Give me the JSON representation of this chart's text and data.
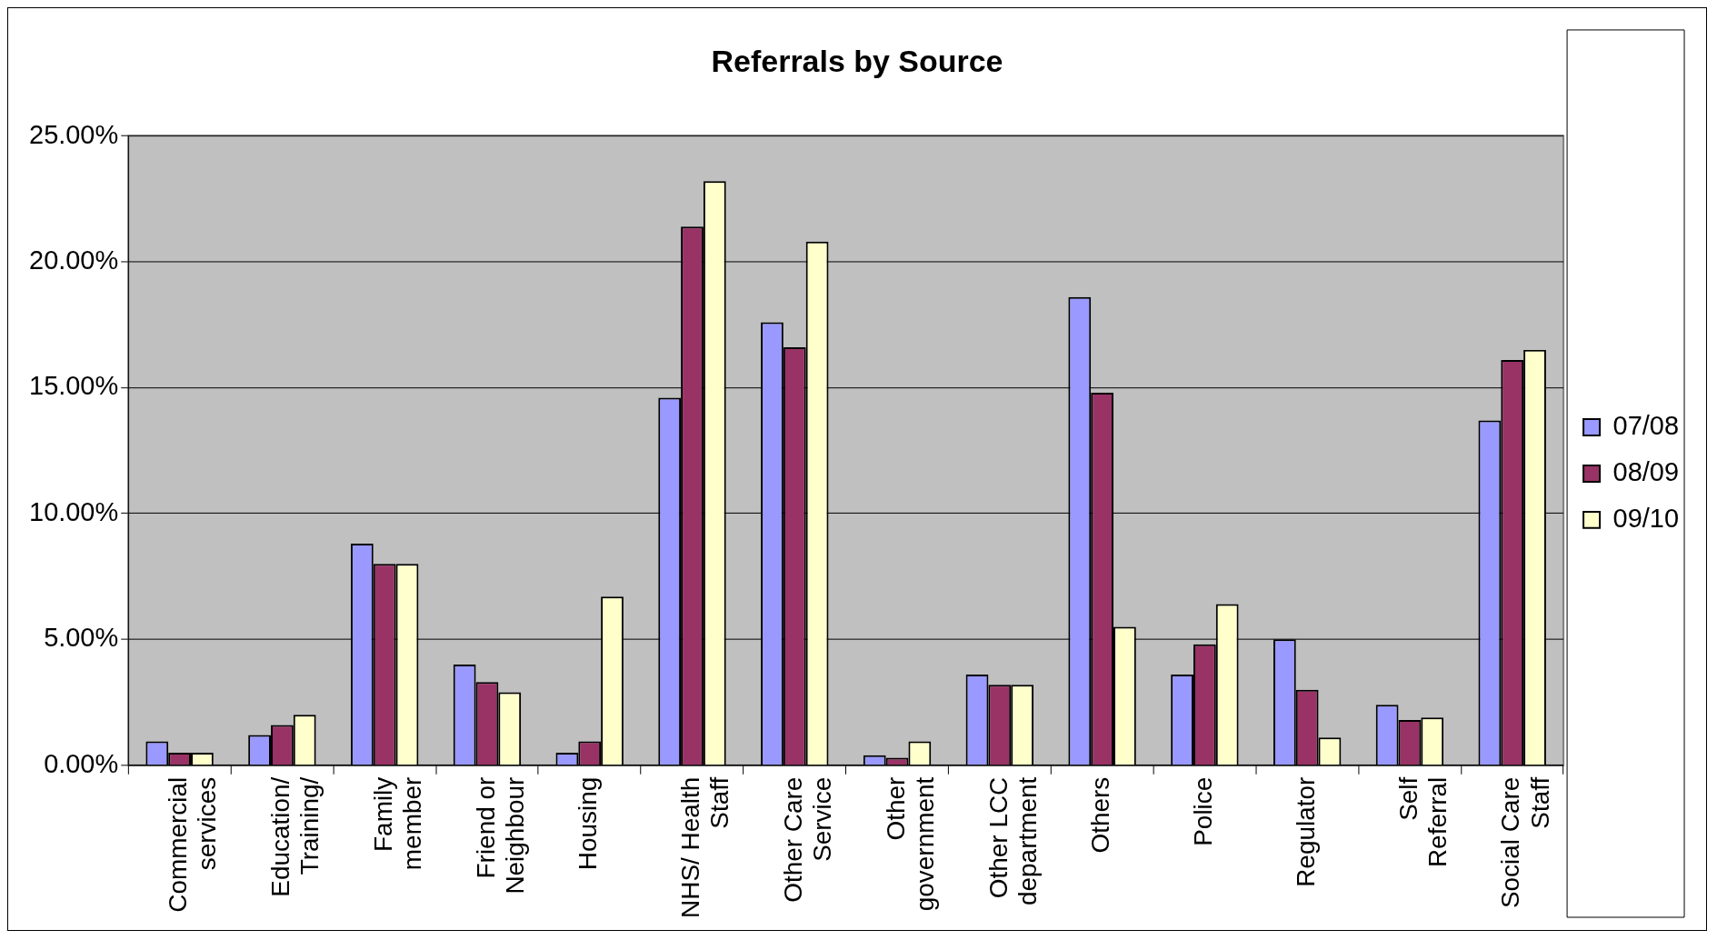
{
  "chart_data": {
    "type": "bar",
    "title": "Referrals by Source",
    "categories": [
      "Commercial services",
      "Education/ Training/",
      "Family member",
      "Friend or Neighbour",
      "Housing",
      "NHS/ Health Staff",
      "Other Care Service",
      "Other government",
      "Other LCC department",
      "Others",
      "Police",
      "Regulator",
      "Self Referral",
      "Social Care Staff"
    ],
    "series": [
      {
        "name": "07/08",
        "color": "#9999ff",
        "values": [
          0.95,
          1.2,
          8.8,
          4.0,
          0.5,
          14.6,
          17.6,
          0.4,
          3.6,
          18.6,
          3.6,
          5.0,
          2.4,
          13.7
        ]
      },
      {
        "name": "08/09",
        "color": "#993366",
        "values": [
          0.5,
          1.6,
          8.0,
          3.3,
          0.95,
          21.4,
          16.6,
          0.3,
          3.2,
          14.8,
          4.8,
          3.0,
          1.8,
          16.1
        ]
      },
      {
        "name": "09/10",
        "color": "#ffffcc",
        "values": [
          0.5,
          2.0,
          8.0,
          2.9,
          6.7,
          23.2,
          20.8,
          0.95,
          3.2,
          5.5,
          6.4,
          1.1,
          1.9,
          16.5
        ]
      }
    ],
    "ylim": [
      0,
      25
    ],
    "yticks": [
      {
        "value": 0,
        "label": "0.00%"
      },
      {
        "value": 5,
        "label": "5.00%"
      },
      {
        "value": 10,
        "label": "10.00%"
      },
      {
        "value": 15,
        "label": "15.00%"
      },
      {
        "value": 20,
        "label": "20.00%"
      },
      {
        "value": 25,
        "label": "25.00%"
      }
    ],
    "grid": "y",
    "legend": "right"
  }
}
